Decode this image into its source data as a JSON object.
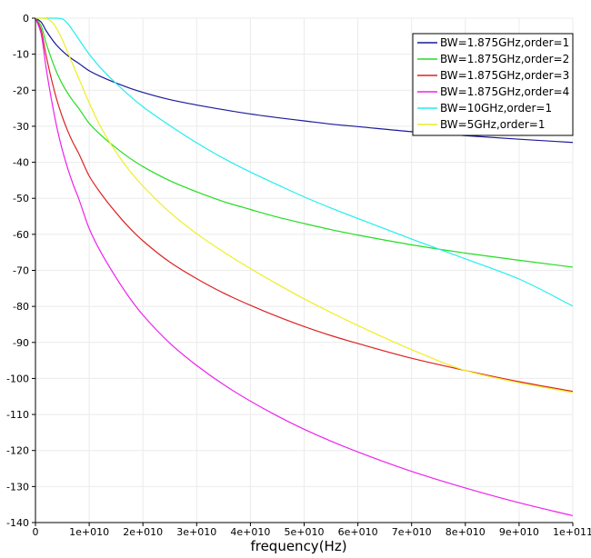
{
  "chart_data": {
    "type": "line",
    "title": "",
    "xlabel": "frequency(Hz)",
    "ylabel": "",
    "xlim": [
      0,
      100000000000
    ],
    "ylim": [
      -140,
      0
    ],
    "x_ticks": [
      0,
      10000000000,
      20000000000,
      30000000000,
      40000000000,
      50000000000,
      60000000000,
      70000000000,
      80000000000,
      90000000000,
      100000000000
    ],
    "x_tick_labels": [
      "0",
      "1e+010",
      "2e+010",
      "3e+010",
      "4e+010",
      "5e+010",
      "6e+010",
      "7e+010",
      "8e+010",
      "9e+010",
      "1e+011"
    ],
    "y_ticks": [
      0,
      -10,
      -20,
      -30,
      -40,
      -50,
      -60,
      -70,
      -80,
      -90,
      -100,
      -110,
      -120,
      -130,
      -140
    ],
    "y_tick_labels": [
      "0",
      "-10",
      "-20",
      "-30",
      "-40",
      "-50",
      "-60",
      "-70",
      "-80",
      "-90",
      "-100",
      "-110",
      "-120",
      "-130",
      "-140"
    ],
    "grid": true,
    "legend_position": "top-right",
    "x": [
      0,
      1000000000,
      2000000000,
      3000000000,
      4000000000,
      5000000000,
      6000000000,
      7000000000,
      8000000000,
      10000000000,
      12000000000,
      15000000000,
      17500000000,
      20000000000,
      25000000000,
      30000000000,
      35000000000,
      40000000000,
      45000000000,
      50000000000,
      55000000000,
      60000000000,
      70000000000,
      80000000000,
      90000000000,
      100000000000
    ],
    "series": [
      {
        "name": "BW=1.875GHz,order=1",
        "color": "#1a1a9c",
        "values": [
          0,
          -1.0,
          -3.5,
          -5.7,
          -7.6,
          -9.1,
          -10.4,
          -11.5,
          -12.5,
          -14.6,
          -16.1,
          -18.0,
          -19.4,
          -20.6,
          -22.6,
          -24.1,
          -25.4,
          -26.6,
          -27.6,
          -28.5,
          -29.4,
          -30.1,
          -31.5,
          -32.6,
          -33.6,
          -34.5
        ]
      },
      {
        "name": "BW=1.875GHz,order=2",
        "color": "#22dd22",
        "values": [
          0,
          -2.0,
          -7.0,
          -11.4,
          -15.2,
          -18.3,
          -20.8,
          -23.0,
          -24.9,
          -29.2,
          -32.2,
          -36.0,
          -38.8,
          -41.2,
          -45.1,
          -48.2,
          -50.9,
          -53.1,
          -55.2,
          -57.0,
          -58.7,
          -60.2,
          -62.9,
          -65.2,
          -67.2,
          -69.1
        ]
      },
      {
        "name": "BW=1.875GHz,order=3",
        "color": "#dd2222",
        "values": [
          0,
          -3.0,
          -10.5,
          -17.1,
          -22.8,
          -27.4,
          -31.3,
          -34.6,
          -37.4,
          -43.8,
          -48.3,
          -54.0,
          -58.2,
          -61.8,
          -67.7,
          -72.3,
          -76.3,
          -79.7,
          -82.8,
          -85.6,
          -88.1,
          -90.3,
          -94.4,
          -97.8,
          -100.9,
          -103.6
        ]
      },
      {
        "name": "BW=1.875GHz,order=4",
        "color": "#ee22ee",
        "values": [
          0,
          -4.0,
          -14.0,
          -22.8,
          -30.4,
          -36.6,
          -41.7,
          -46.1,
          -49.9,
          -58.4,
          -64.5,
          -72.0,
          -77.6,
          -82.4,
          -90.2,
          -96.4,
          -101.7,
          -106.3,
          -110.4,
          -114.1,
          -117.4,
          -120.4,
          -125.8,
          -130.4,
          -134.5,
          -138.1
        ]
      },
      {
        "name": "BW=10GHz,order=1",
        "color": "#22eeee",
        "values": [
          0,
          0,
          0,
          0,
          0,
          -0.2,
          -1.5,
          -3.5,
          -5.7,
          -10.0,
          -13.6,
          -18.1,
          -21.5,
          -24.6,
          -29.8,
          -34.6,
          -38.9,
          -42.7,
          -46.2,
          -49.6,
          -52.7,
          -55.6,
          -61.3,
          -66.8,
          -72.4,
          -79.9
        ]
      },
      {
        "name": "BW=5GHz,order=1",
        "color": "#eeee22",
        "values": [
          0,
          0,
          -0.1,
          -1.0,
          -3.0,
          -6.0,
          -9.5,
          -13.0,
          -16.5,
          -23.5,
          -29.8,
          -37.2,
          -42.3,
          -46.6,
          -53.9,
          -59.8,
          -64.9,
          -69.5,
          -73.8,
          -77.9,
          -81.7,
          -85.3,
          -92.0,
          -97.8,
          -101.2,
          -103.9
        ]
      }
    ]
  }
}
